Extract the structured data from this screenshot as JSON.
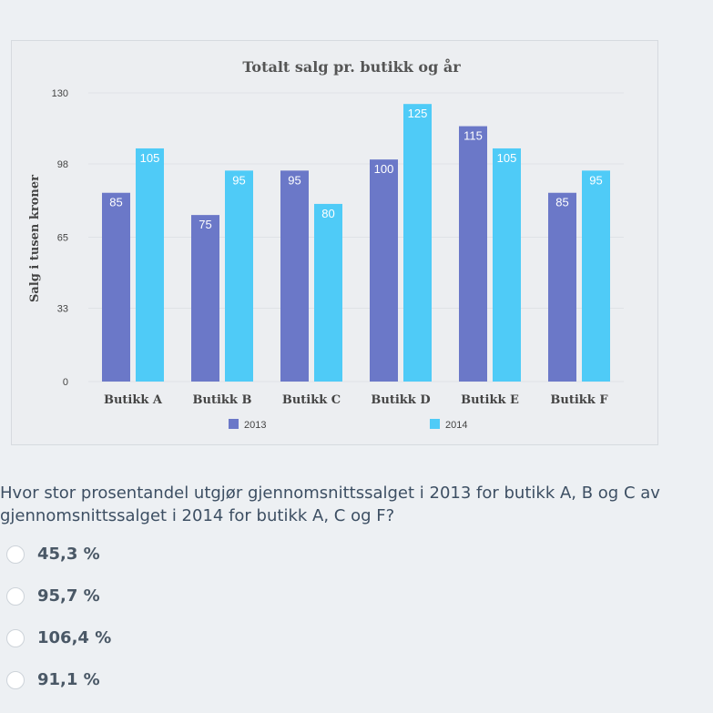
{
  "chart_data": {
    "type": "bar",
    "title": "Totalt salg pr. butikk og år",
    "ylabel": "Salg i tusen kroner",
    "xlabel": "",
    "ylim": [
      0,
      130
    ],
    "yticks": [
      "0",
      "33",
      "65",
      "98",
      "130"
    ],
    "categories": [
      "Butikk A",
      "Butikk B",
      "Butikk C",
      "Butikk D",
      "Butikk E",
      "Butikk F"
    ],
    "series": [
      {
        "name": "2013",
        "color": "#6b78c8",
        "values": [
          85,
          75,
          95,
          100,
          115,
          85
        ]
      },
      {
        "name": "2014",
        "color": "#4fcbf7",
        "values": [
          105,
          95,
          80,
          125,
          105,
          95
        ]
      }
    ],
    "grid": true,
    "legend_position": "bottom"
  },
  "question": {
    "text": "Hvor stor prosentandel utgjør gjennomsnittssalget i 2013 for butikk A, B og C av gjennomsnittssalget i 2014 for butikk A, C og F?"
  },
  "options": [
    {
      "label": "45,3 %"
    },
    {
      "label": "95,7 %"
    },
    {
      "label": "106,4 %"
    },
    {
      "label": "91,1 %"
    }
  ]
}
